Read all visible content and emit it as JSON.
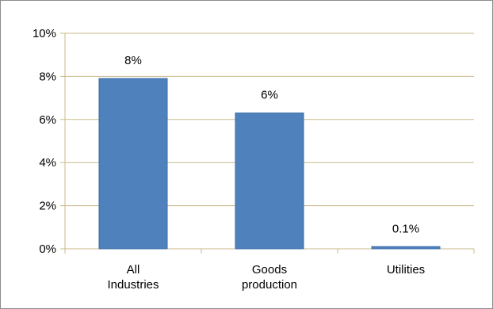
{
  "chart_data": {
    "type": "bar",
    "categories": [
      [
        "All",
        "Industries"
      ],
      [
        "Goods",
        "production"
      ],
      [
        "Utilities"
      ]
    ],
    "values": [
      7.9,
      6.3,
      0.1
    ],
    "data_labels": [
      "8%",
      "6%",
      "0.1%"
    ],
    "ylim": [
      0,
      10
    ],
    "yticks": [
      0,
      2,
      4,
      6,
      8,
      10
    ],
    "ytick_labels": [
      "0%",
      "2%",
      "4%",
      "6%",
      "8%",
      "10%"
    ],
    "grid": true,
    "legend": "none",
    "colors": {
      "bar": "#4f81bd",
      "bar_edge": "#3a6aa5",
      "grid": "#c9b98a",
      "axis": "#c9b98a"
    }
  }
}
